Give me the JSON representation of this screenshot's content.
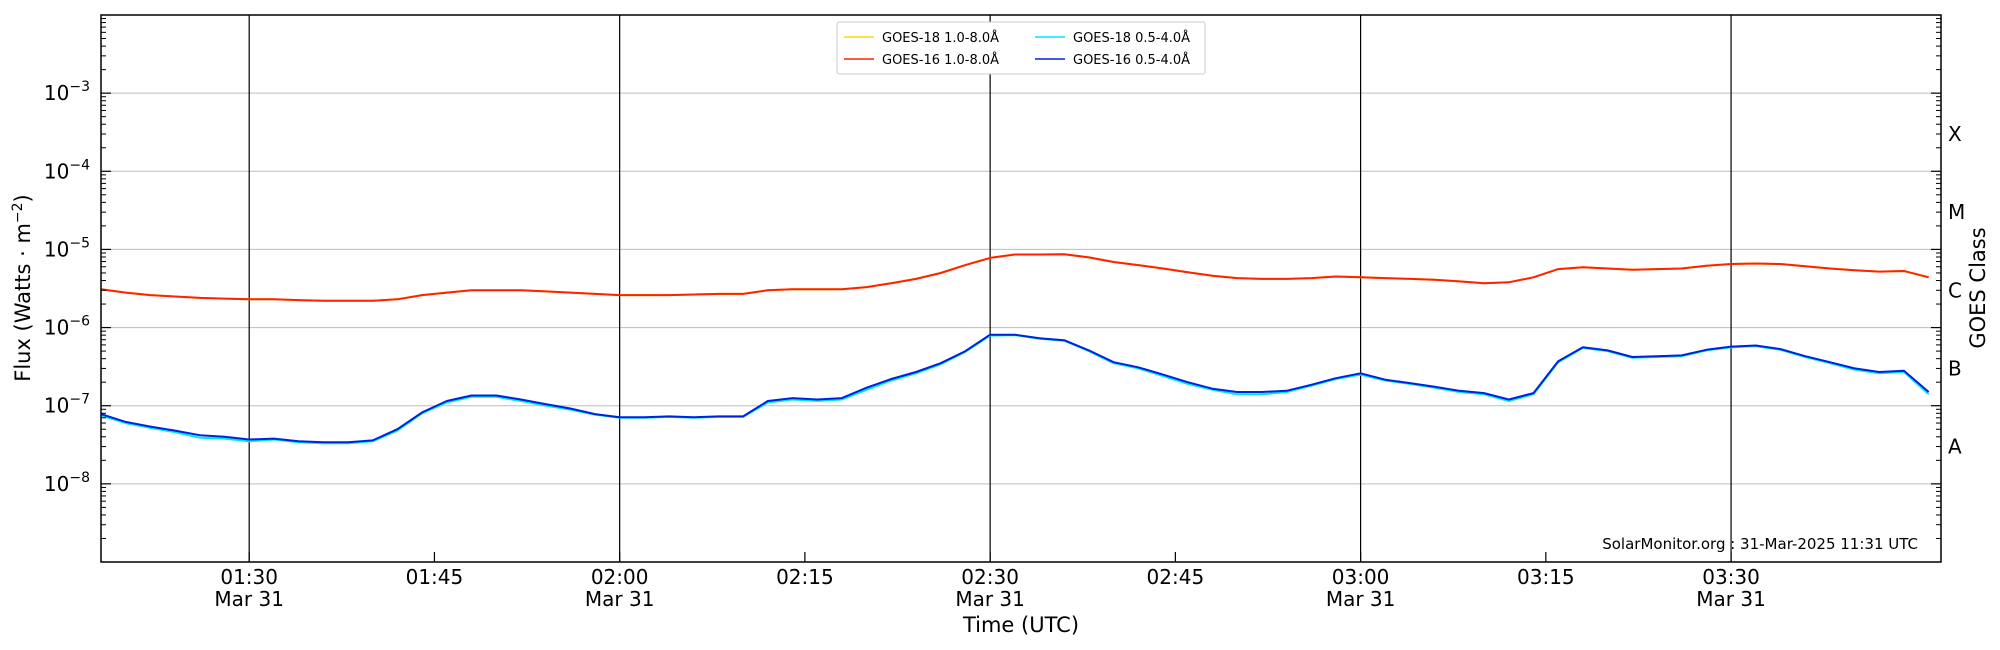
{
  "chart_data": {
    "type": "line",
    "title": "",
    "xlabel": "Time (UTC)",
    "ylabel_main": "Flux (Watts · m",
    "ylabel_sup": "−2",
    "ylabel_close": ")",
    "y2label": "GOES Class",
    "yscale": "log",
    "xlim": [
      "2025-03-31 01:18",
      "2025-03-31 03:47"
    ],
    "ylim": [
      1e-09,
      0.01
    ],
    "grid": "horizontal",
    "legend_position": "top-center",
    "credit": "SolarMonitor.org : 31-Mar-2025 11:31 UTC",
    "y_ticks": [
      {
        "value": 0.001,
        "base": "10",
        "exp": "−3"
      },
      {
        "value": 0.0001,
        "base": "10",
        "exp": "−4"
      },
      {
        "value": 1e-05,
        "base": "10",
        "exp": "−5"
      },
      {
        "value": 1e-06,
        "base": "10",
        "exp": "−6"
      },
      {
        "value": 1e-07,
        "base": "10",
        "exp": "−7"
      },
      {
        "value": 1e-08,
        "base": "10",
        "exp": "−8"
      }
    ],
    "x_ticks": [
      {
        "time": "01:30",
        "top": "01:30",
        "bottom": "Mar 31"
      },
      {
        "time": "01:45",
        "top": "01:45",
        "bottom": ""
      },
      {
        "time": "02:00",
        "top": "02:00",
        "bottom": "Mar 31"
      },
      {
        "time": "02:15",
        "top": "02:15",
        "bottom": ""
      },
      {
        "time": "02:30",
        "top": "02:30",
        "bottom": "Mar 31"
      },
      {
        "time": "02:45",
        "top": "02:45",
        "bottom": ""
      },
      {
        "time": "03:00",
        "top": "03:00",
        "bottom": "Mar 31"
      },
      {
        "time": "03:15",
        "top": "03:15",
        "bottom": ""
      },
      {
        "time": "03:30",
        "top": "03:30",
        "bottom": "Mar 31"
      }
    ],
    "vertical_lines": [
      "01:30",
      "02:00",
      "02:30",
      "03:00",
      "03:30"
    ],
    "class_labels": [
      {
        "label": "A",
        "value": 3e-08
      },
      {
        "label": "B",
        "value": 3e-07
      },
      {
        "label": "C",
        "value": 3e-06
      },
      {
        "label": "M",
        "value": 3e-05
      },
      {
        "label": "X",
        "value": 0.0003
      }
    ],
    "x": [
      "01:18",
      "01:20",
      "01:22",
      "01:24",
      "01:26",
      "01:28",
      "01:30",
      "01:32",
      "01:34",
      "01:36",
      "01:38",
      "01:40",
      "01:42",
      "01:44",
      "01:46",
      "01:48",
      "01:50",
      "01:52",
      "01:54",
      "01:56",
      "01:58",
      "02:00",
      "02:02",
      "02:04",
      "02:06",
      "02:08",
      "02:10",
      "02:12",
      "02:14",
      "02:16",
      "02:18",
      "02:20",
      "02:22",
      "02:24",
      "02:26",
      "02:28",
      "02:30",
      "02:32",
      "02:34",
      "02:36",
      "02:38",
      "02:40",
      "02:42",
      "02:44",
      "02:46",
      "02:48",
      "02:50",
      "02:52",
      "02:54",
      "02:56",
      "02:58",
      "03:00",
      "03:02",
      "03:04",
      "03:06",
      "03:08",
      "03:10",
      "03:12",
      "03:14",
      "03:16",
      "03:18",
      "03:20",
      "03:22",
      "03:24",
      "03:26",
      "03:28",
      "03:30",
      "03:32",
      "03:34",
      "03:36",
      "03:38",
      "03:40",
      "03:42",
      "03:44",
      "03:46"
    ],
    "series": [
      {
        "name": "GOES-18 1.0-8.0Å",
        "color": "#ffd700",
        "values": [
          3.1e-06,
          2.8e-06,
          2.6e-06,
          2.5e-06,
          2.4e-06,
          2.35e-06,
          2.3e-06,
          2.3e-06,
          2.25e-06,
          2.2e-06,
          2.2e-06,
          2.2e-06,
          2.3e-06,
          2.6e-06,
          2.8e-06,
          3e-06,
          3e-06,
          3e-06,
          2.9e-06,
          2.8e-06,
          2.7e-06,
          2.6e-06,
          2.6e-06,
          2.6e-06,
          2.65e-06,
          2.7e-06,
          2.7e-06,
          3e-06,
          3.1e-06,
          3.1e-06,
          3.1e-06,
          3.3e-06,
          3.7e-06,
          4.2e-06,
          5e-06,
          6.3e-06,
          7.8e-06,
          8.6e-06,
          8.6e-06,
          8.7e-06,
          7.9e-06,
          6.9e-06,
          6.3e-06,
          5.7e-06,
          5.1e-06,
          4.6e-06,
          4.3e-06,
          4.2e-06,
          4.2e-06,
          4.3e-06,
          4.5e-06,
          4.4e-06,
          4.3e-06,
          4.2e-06,
          4.1e-06,
          3.9e-06,
          3.7e-06,
          3.8e-06,
          4.4e-06,
          5.6e-06,
          5.9e-06,
          5.7e-06,
          5.5e-06,
          5.6e-06,
          5.7e-06,
          6.2e-06,
          6.5e-06,
          6.6e-06,
          6.5e-06,
          6.1e-06,
          5.7e-06,
          5.4e-06,
          5.2e-06,
          5.3e-06,
          4.4e-06
        ]
      },
      {
        "name": "GOES-16 1.0-8.0Å",
        "color": "#ff2200",
        "values": [
          3.1e-06,
          2.8e-06,
          2.6e-06,
          2.5e-06,
          2.4e-06,
          2.35e-06,
          2.3e-06,
          2.3e-06,
          2.25e-06,
          2.2e-06,
          2.2e-06,
          2.2e-06,
          2.3e-06,
          2.6e-06,
          2.8e-06,
          3e-06,
          3e-06,
          3e-06,
          2.9e-06,
          2.8e-06,
          2.7e-06,
          2.6e-06,
          2.6e-06,
          2.6e-06,
          2.65e-06,
          2.7e-06,
          2.7e-06,
          3e-06,
          3.1e-06,
          3.1e-06,
          3.1e-06,
          3.3e-06,
          3.7e-06,
          4.2e-06,
          5e-06,
          6.3e-06,
          7.8e-06,
          8.6e-06,
          8.6e-06,
          8.7e-06,
          7.9e-06,
          6.9e-06,
          6.3e-06,
          5.7e-06,
          5.1e-06,
          4.6e-06,
          4.3e-06,
          4.2e-06,
          4.2e-06,
          4.3e-06,
          4.5e-06,
          4.4e-06,
          4.3e-06,
          4.2e-06,
          4.1e-06,
          3.9e-06,
          3.7e-06,
          3.8e-06,
          4.4e-06,
          5.6e-06,
          5.9e-06,
          5.7e-06,
          5.5e-06,
          5.6e-06,
          5.7e-06,
          6.2e-06,
          6.5e-06,
          6.6e-06,
          6.5e-06,
          6.1e-06,
          5.7e-06,
          5.4e-06,
          5.2e-06,
          5.3e-06,
          4.4e-06
        ]
      },
      {
        "name": "GOES-18 0.5-4.0Å",
        "color": "#00e5ff",
        "values": [
          7.5e-08,
          6e-08,
          5.2e-08,
          4.6e-08,
          3.9e-08,
          3.8e-08,
          3.5e-08,
          3.7e-08,
          3.4e-08,
          3.3e-08,
          3.3e-08,
          3.5e-08,
          4.8e-08,
          8e-08,
          1.1e-07,
          1.3e-07,
          1.3e-07,
          1.15e-07,
          1e-07,
          8.9e-08,
          7.7e-08,
          7e-08,
          7e-08,
          7.2e-08,
          7e-08,
          7.2e-08,
          7.2e-08,
          1.1e-07,
          1.2e-07,
          1.15e-07,
          1.2e-07,
          1.6e-07,
          2.1e-07,
          2.6e-07,
          3.4e-07,
          4.9e-07,
          7.9e-07,
          8e-07,
          7.2e-07,
          6.8e-07,
          5e-07,
          3.5e-07,
          3e-07,
          2.4e-07,
          1.9e-07,
          1.6e-07,
          1.4e-07,
          1.4e-07,
          1.5e-07,
          1.8e-07,
          2.2e-07,
          2.5e-07,
          2.1e-07,
          1.9e-07,
          1.7e-07,
          1.5e-07,
          1.4e-07,
          1.15e-07,
          1.4e-07,
          3.6e-07,
          5.5e-07,
          5e-07,
          4.1e-07,
          4.2e-07,
          4.3e-07,
          5.1e-07,
          5.6e-07,
          5.8e-07,
          5.2e-07,
          4.2e-07,
          3.5e-07,
          2.9e-07,
          2.6e-07,
          2.7e-07,
          1.4e-07
        ]
      },
      {
        "name": "GOES-16 0.5-4.0Å",
        "color": "#0022dd",
        "values": [
          7.8e-08,
          6.2e-08,
          5.4e-08,
          4.8e-08,
          4.2e-08,
          4e-08,
          3.7e-08,
          3.8e-08,
          3.5e-08,
          3.4e-08,
          3.4e-08,
          3.6e-08,
          5e-08,
          8.2e-08,
          1.15e-07,
          1.35e-07,
          1.35e-07,
          1.2e-07,
          1.05e-07,
          9.2e-08,
          7.8e-08,
          7.1e-08,
          7.1e-08,
          7.3e-08,
          7.1e-08,
          7.3e-08,
          7.3e-08,
          1.15e-07,
          1.25e-07,
          1.2e-07,
          1.25e-07,
          1.7e-07,
          2.2e-07,
          2.7e-07,
          3.5e-07,
          5e-07,
          8.1e-07,
          8.1e-07,
          7.3e-07,
          6.9e-07,
          5.1e-07,
          3.6e-07,
          3.1e-07,
          2.5e-07,
          2e-07,
          1.65e-07,
          1.5e-07,
          1.5e-07,
          1.55e-07,
          1.85e-07,
          2.25e-07,
          2.6e-07,
          2.15e-07,
          1.95e-07,
          1.75e-07,
          1.55e-07,
          1.45e-07,
          1.2e-07,
          1.45e-07,
          3.7e-07,
          5.6e-07,
          5.1e-07,
          4.2e-07,
          4.3e-07,
          4.4e-07,
          5.2e-07,
          5.7e-07,
          5.9e-07,
          5.3e-07,
          4.3e-07,
          3.6e-07,
          3e-07,
          2.7e-07,
          2.8e-07,
          1.5e-07
        ]
      }
    ]
  }
}
